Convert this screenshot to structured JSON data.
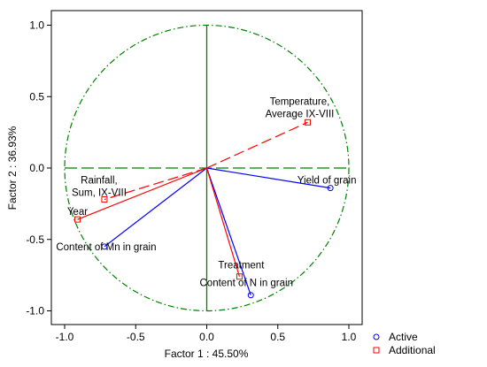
{
  "chart_data": {
    "type": "scatter",
    "xlabel": "Factor 1 : 45.50%",
    "ylabel": "Factor 2 : 36.93%",
    "xlim": [
      -1.1,
      1.1
    ],
    "ylim": [
      -1.1,
      1.1
    ],
    "xticks": [
      "-1.0",
      "-0.5",
      "0.0",
      "0.5",
      "1.0"
    ],
    "yticks": [
      "-1.0",
      "-0.5",
      "0.0",
      "0.5",
      "1.0"
    ],
    "grid": false,
    "unit_circle": true,
    "legend_position": "bottom-right",
    "series": [
      {
        "name": "Active",
        "color": "#0000ff",
        "marker": "circle",
        "points": [
          {
            "label": "Yield of grain",
            "x": 0.87,
            "y": -0.14
          },
          {
            "label": "Content of Mn in grain",
            "x": -0.72,
            "y": -0.55
          },
          {
            "label": "Content of N in grain",
            "x": 0.31,
            "y": -0.89
          }
        ]
      },
      {
        "name": "Additional",
        "color": "#ff0000",
        "marker": "square",
        "points": [
          {
            "label": "Temperature, Average IX-VIII",
            "x": 0.71,
            "y": 0.32
          },
          {
            "label": "Rainfall, Sum, IX-VIII",
            "x": -0.72,
            "y": -0.22
          },
          {
            "label": "Year",
            "x": -0.91,
            "y": -0.36
          },
          {
            "label": "Treatment",
            "x": 0.23,
            "y": -0.76
          }
        ]
      }
    ]
  },
  "colors": {
    "circle": "#008000",
    "axes_lines": "#008000",
    "active": "#0000ff",
    "additional": "#ff0000"
  }
}
